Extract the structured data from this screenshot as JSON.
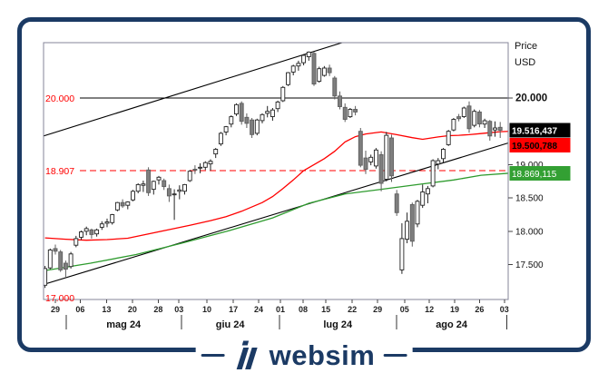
{
  "colors": {
    "brand_navy": "#1B3A64",
    "bull_fill": "#ffffff",
    "bear_fill": "#7e7e7e",
    "ma_fast": "#ff0000",
    "ma_slow": "#2e9b2e",
    "level_red": "#ff0000",
    "frame_gray": "#85859a"
  },
  "logo": {
    "text": "websim"
  },
  "chart_data": {
    "type": "candlestick",
    "instrument_currency_title": [
      "Price",
      "USD"
    ],
    "ylim": [
      16969,
      20831
    ],
    "right_axis_ticks": [
      {
        "label": "20.000",
        "price": 20000,
        "bold": true
      },
      {
        "label": "19.000",
        "price": 19000,
        "bold": false
      },
      {
        "label": "18.500",
        "price": 18500,
        "bold": false
      },
      {
        "label": "18.000",
        "price": 18000,
        "bold": false
      },
      {
        "label": "17.500",
        "price": 17500,
        "bold": false
      }
    ],
    "bottom_axis": {
      "day_ticks": [
        [
          "29",
          2.0
        ],
        [
          "06",
          6.8
        ],
        [
          "13",
          11.9
        ],
        [
          "20",
          16.9
        ],
        [
          "28",
          21.9
        ],
        [
          "03",
          25.9
        ],
        [
          "10",
          31.3
        ],
        [
          "17",
          36.4
        ],
        [
          "24",
          41.3
        ],
        [
          "01",
          45.5
        ],
        [
          "08",
          49.9
        ],
        [
          "15",
          54.3
        ],
        [
          "22",
          59.4
        ],
        [
          "29",
          64.3
        ],
        [
          "05",
          69.5
        ],
        [
          "12",
          74.3
        ],
        [
          "19",
          79.2
        ],
        [
          "26",
          84.0
        ],
        [
          "03",
          88.8
        ]
      ],
      "month_labels": [
        [
          "mag 24",
          15.2
        ],
        [
          "giu 24",
          35.8
        ],
        [
          "lug 24",
          56.6
        ],
        [
          "ago 24",
          78.6
        ]
      ],
      "month_separators": [
        4.1,
        26.4,
        45.3,
        68.0,
        89.3
      ]
    },
    "levels": [
      {
        "label": "20.000",
        "price": 20000,
        "line": "solid",
        "line_color": "#000000",
        "label_color": "#ff0000"
      },
      {
        "label": "18.907",
        "price": 18907,
        "line": "dashed",
        "line_color": "#ff0000",
        "label_color": "#ff0000"
      },
      {
        "label": "17.000",
        "price": 17000,
        "line": "none",
        "line_color": "#ff0000",
        "label_color": "#ff0000"
      }
    ],
    "price_tags": [
      {
        "text": "19.516,437",
        "price": 19516.437,
        "bg": "#000000",
        "fg": "#ffffff",
        "stack_below_previous": false
      },
      {
        "text": "19.500,788",
        "price": 19500.788,
        "bg": "#ff0000",
        "fg": "#000000",
        "stack_below_previous": true
      },
      {
        "text": "18.869,115",
        "price": 18869.115,
        "bg": "#33a033",
        "fg": "#ffffff",
        "stack_below_previous": false
      }
    ],
    "moving_averages": [
      {
        "name": "ma-fast-red",
        "color": "#ff0000",
        "points": [
          [
            0,
            17900
          ],
          [
            4,
            17880
          ],
          [
            8,
            17865
          ],
          [
            12,
            17875
          ],
          [
            16,
            17895
          ],
          [
            20,
            17960
          ],
          [
            24,
            18025
          ],
          [
            28,
            18090
          ],
          [
            32,
            18160
          ],
          [
            35,
            18220
          ],
          [
            38,
            18300
          ],
          [
            42,
            18430
          ],
          [
            44,
            18520
          ],
          [
            46,
            18640
          ],
          [
            48,
            18770
          ],
          [
            50,
            18910
          ],
          [
            52,
            19000
          ],
          [
            54,
            19090
          ],
          [
            56,
            19200
          ],
          [
            58,
            19340
          ],
          [
            60,
            19420
          ],
          [
            62,
            19460
          ],
          [
            65,
            19490
          ],
          [
            68,
            19450
          ],
          [
            71,
            19405
          ],
          [
            73,
            19380
          ],
          [
            76,
            19415
          ],
          [
            78,
            19435
          ],
          [
            80,
            19440
          ],
          [
            82,
            19450
          ],
          [
            84,
            19465
          ],
          [
            86,
            19480
          ],
          [
            88,
            19495
          ],
          [
            89.6,
            19500
          ]
        ]
      },
      {
        "name": "ma-slow-green",
        "color": "#2e9b2e",
        "points": [
          [
            0,
            17410
          ],
          [
            8.8,
            17520
          ],
          [
            17.6,
            17650
          ],
          [
            26.4,
            17820
          ],
          [
            35.2,
            18000
          ],
          [
            44,
            18200
          ],
          [
            51,
            18420
          ],
          [
            58,
            18560
          ],
          [
            65,
            18630
          ],
          [
            72,
            18700
          ],
          [
            79,
            18770
          ],
          [
            84.3,
            18840
          ],
          [
            89.6,
            18870
          ]
        ]
      }
    ],
    "trendlines": [
      {
        "name": "channel-support",
        "from_day": -0.3,
        "from_price": 17200,
        "to_day": 90,
        "to_price": 19335
      },
      {
        "name": "channel-resistance",
        "from_day": -0.3,
        "from_price": 19430,
        "to_day": 58,
        "to_price": 20845
      }
    ],
    "candles": [
      [
        "25/04",
        17190,
        17480,
        17150,
        17440
      ],
      [
        "26/04",
        17450,
        17740,
        17430,
        17720
      ],
      [
        "29/04",
        17740,
        17800,
        17650,
        17700
      ],
      [
        "30/04",
        17690,
        17720,
        17390,
        17420
      ],
      [
        "01/05",
        17520,
        17560,
        17290,
        17430
      ],
      [
        "02/05",
        17470,
        17690,
        17440,
        17660
      ],
      [
        "03/05",
        17790,
        17930,
        17760,
        17890
      ],
      [
        "06/05",
        17910,
        18010,
        17870,
        17990
      ],
      [
        "07/05",
        18000,
        18070,
        17940,
        18040
      ],
      [
        "08/05",
        18020,
        18040,
        17890,
        17950
      ],
      [
        "09/05",
        17960,
        18040,
        17920,
        18020
      ],
      [
        "10/05",
        18060,
        18150,
        18020,
        18110
      ],
      [
        "13/05",
        18120,
        18190,
        18060,
        18140
      ],
      [
        "14/05",
        18130,
        18260,
        18100,
        18250
      ],
      [
        "15/05",
        18320,
        18440,
        18300,
        18430
      ],
      [
        "16/05",
        18430,
        18480,
        18350,
        18380
      ],
      [
        "17/05",
        18390,
        18450,
        18330,
        18440
      ],
      [
        "20/05",
        18470,
        18620,
        18450,
        18600
      ],
      [
        "21/05",
        18600,
        18720,
        18570,
        18700
      ],
      [
        "22/05",
        18690,
        18760,
        18590,
        18710
      ],
      [
        "23/05",
        18920,
        18960,
        18530,
        18580
      ],
      [
        "24/05",
        18630,
        18760,
        18550,
        18750
      ],
      [
        "28/05",
        18770,
        18830,
        18700,
        18810
      ],
      [
        "29/05",
        18760,
        18790,
        18620,
        18670
      ],
      [
        "30/05",
        18640,
        18700,
        18440,
        18530
      ],
      [
        "31/05",
        18560,
        18630,
        18170,
        18560
      ],
      [
        "03/06",
        18600,
        18690,
        18480,
        18620
      ],
      [
        "04/06",
        18600,
        18710,
        18550,
        18700
      ],
      [
        "05/06",
        18760,
        18920,
        18740,
        18900
      ],
      [
        "06/06",
        18930,
        18990,
        18860,
        18920
      ],
      [
        "07/06",
        18950,
        19020,
        18870,
        18960
      ],
      [
        "10/06",
        18960,
        19050,
        18920,
        19030
      ],
      [
        "11/06",
        19010,
        19080,
        18910,
        19050
      ],
      [
        "12/06",
        19160,
        19250,
        19100,
        19230
      ],
      [
        "13/06",
        19310,
        19490,
        19280,
        19470
      ],
      [
        "14/06",
        19490,
        19580,
        19440,
        19570
      ],
      [
        "17/06",
        19610,
        19740,
        19560,
        19720
      ],
      [
        "18/06",
        19760,
        19920,
        19730,
        19900
      ],
      [
        "20/06",
        19920,
        19950,
        19600,
        19650
      ],
      [
        "21/06",
        19710,
        19770,
        19550,
        19620
      ],
      [
        "24/06",
        19670,
        19700,
        19400,
        19450
      ],
      [
        "25/06",
        19470,
        19690,
        19440,
        19670
      ],
      [
        "26/06",
        19660,
        19770,
        19620,
        19750
      ],
      [
        "27/06",
        19770,
        19880,
        19710,
        19800
      ],
      [
        "28/06",
        19720,
        19850,
        19660,
        19820
      ],
      [
        "01/07",
        19840,
        19960,
        19790,
        19940
      ],
      [
        "02/07",
        19960,
        20180,
        19940,
        20160
      ],
      [
        "03/07",
        20200,
        20390,
        20180,
        20380
      ],
      [
        "05/07",
        20390,
        20500,
        20340,
        20480
      ],
      [
        "08/07",
        20480,
        20560,
        20410,
        20520
      ],
      [
        "09/07",
        20530,
        20660,
        20490,
        20640
      ],
      [
        "10/07",
        20620,
        20700,
        20560,
        20690
      ],
      [
        "11/07",
        20670,
        20690,
        20180,
        20210
      ],
      [
        "12/07",
        20250,
        20470,
        20230,
        20440
      ],
      [
        "15/07",
        20340,
        20480,
        20320,
        20450
      ],
      [
        "16/07",
        20450,
        20500,
        20330,
        20380
      ],
      [
        "17/07",
        20300,
        20330,
        19980,
        20030
      ],
      [
        "18/07",
        20030,
        20100,
        19830,
        19870
      ],
      [
        "19/07",
        19860,
        19920,
        19640,
        19680
      ],
      [
        "22/07",
        19720,
        19850,
        19700,
        19830
      ],
      [
        "23/07",
        19830,
        19880,
        19740,
        19790
      ],
      [
        "24/07",
        19500,
        19550,
        18960,
        18990
      ],
      [
        "25/07",
        19100,
        19210,
        18860,
        18930
      ],
      [
        "26/07",
        19040,
        19150,
        18990,
        19110
      ],
      [
        "29/07",
        18980,
        19250,
        18940,
        19220
      ],
      [
        "30/07",
        19150,
        19200,
        18600,
        18720
      ],
      [
        "31/07",
        18780,
        19490,
        18750,
        19440
      ],
      [
        "01/08",
        19400,
        19450,
        18740,
        18830
      ],
      [
        "02/08",
        18560,
        18620,
        18230,
        18280
      ],
      [
        "05/08",
        17420,
        18120,
        17360,
        17890
      ],
      [
        "06/08",
        17880,
        18280,
        17820,
        18150
      ],
      [
        "07/08",
        18400,
        18430,
        17770,
        17850
      ],
      [
        "08/08",
        18110,
        18470,
        18060,
        18450
      ],
      [
        "09/08",
        18390,
        18700,
        18350,
        18590
      ],
      [
        "12/08",
        18560,
        18680,
        18420,
        18640
      ],
      [
        "13/08",
        18680,
        19080,
        18660,
        19060
      ],
      [
        "14/08",
        19010,
        19100,
        18930,
        19060
      ],
      [
        "15/08",
        19090,
        19250,
        19030,
        19230
      ],
      [
        "16/08",
        19300,
        19520,
        19280,
        19500
      ],
      [
        "19/08",
        19520,
        19700,
        19500,
        19680
      ],
      [
        "20/08",
        19720,
        19760,
        19650,
        19690
      ],
      [
        "21/08",
        19720,
        19870,
        19700,
        19850
      ],
      [
        "22/08",
        19880,
        19950,
        19480,
        19540
      ],
      [
        "23/08",
        19590,
        19830,
        19560,
        19800
      ],
      [
        "26/08",
        19790,
        19820,
        19560,
        19610
      ],
      [
        "27/08",
        19610,
        19690,
        19550,
        19660
      ],
      [
        "28/08",
        19650,
        19670,
        19360,
        19430
      ],
      [
        "29/08",
        19520,
        19650,
        19420,
        19550
      ],
      [
        "30/08",
        19560,
        19640,
        19400,
        19516
      ]
    ]
  }
}
